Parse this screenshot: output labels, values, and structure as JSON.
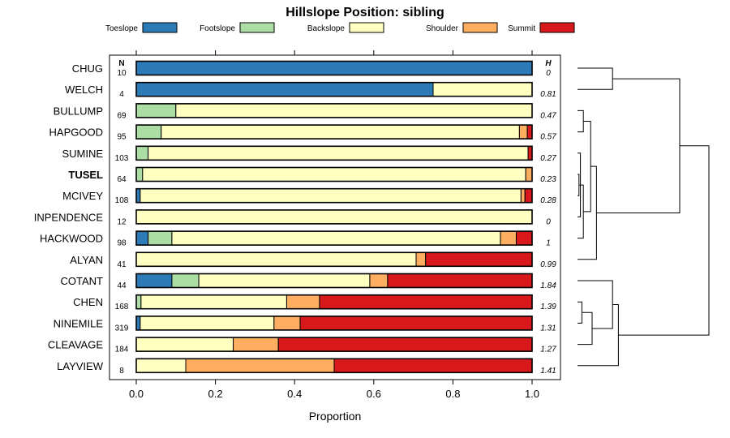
{
  "chart_data": {
    "type": "bar",
    "orientation": "horizontal",
    "stacked": true,
    "title": "Hillslope Position: sibling",
    "xlabel": "Proportion",
    "xlim": [
      0,
      1
    ],
    "xticks": [
      "0.0",
      "0.2",
      "0.4",
      "0.6",
      "0.8",
      "1.0"
    ],
    "n_header": "N",
    "h_header": "H",
    "legend_position": "top",
    "highlighted_category": "TUSEL",
    "series": [
      {
        "name": "Toeslope",
        "color": "#2c7bb6"
      },
      {
        "name": "Footslope",
        "color": "#abdda4"
      },
      {
        "name": "Backslope",
        "color": "#ffffbf"
      },
      {
        "name": "Shoulder",
        "color": "#fdae61"
      },
      {
        "name": "Summit",
        "color": "#d7191c"
      }
    ],
    "rows": [
      {
        "name": "CHUG",
        "n": "10",
        "h": "0",
        "values": [
          1.0,
          0,
          0,
          0,
          0
        ]
      },
      {
        "name": "WELCH",
        "n": "4",
        "h": "0.81",
        "values": [
          0.75,
          0,
          0.25,
          0,
          0
        ]
      },
      {
        "name": "BULLUMP",
        "n": "69",
        "h": "0.47",
        "values": [
          0,
          0.1,
          0.9,
          0,
          0
        ]
      },
      {
        "name": "HAPGOOD",
        "n": "95",
        "h": "0.57",
        "values": [
          0,
          0.063,
          0.905,
          0.02,
          0.012
        ]
      },
      {
        "name": "SUMINE",
        "n": "103",
        "h": "0.27",
        "values": [
          0,
          0.03,
          0.96,
          0,
          0.01
        ]
      },
      {
        "name": "TUSEL",
        "n": "64",
        "h": "0.23",
        "values": [
          0,
          0.016,
          0.968,
          0.016,
          0
        ]
      },
      {
        "name": "MCIVEY",
        "n": "108",
        "h": "0.28",
        "values": [
          0.01,
          0,
          0.962,
          0.01,
          0.018
        ]
      },
      {
        "name": "INPENDENCE",
        "n": "12",
        "h": "0",
        "values": [
          0,
          0,
          1.0,
          0,
          0
        ]
      },
      {
        "name": "HACKWOOD",
        "n": "98",
        "h": "1",
        "values": [
          0.03,
          0.06,
          0.83,
          0.04,
          0.04
        ]
      },
      {
        "name": "ALYAN",
        "n": "41",
        "h": "0.99",
        "values": [
          0,
          0,
          0.707,
          0.024,
          0.269
        ]
      },
      {
        "name": "COTANT",
        "n": "44",
        "h": "1.84",
        "values": [
          0.09,
          0.068,
          0.432,
          0.045,
          0.365
        ]
      },
      {
        "name": "CHEN",
        "n": "168",
        "h": "1.39",
        "values": [
          0,
          0.012,
          0.368,
          0.083,
          0.537
        ]
      },
      {
        "name": "NINEMILE",
        "n": "319",
        "h": "1.31",
        "values": [
          0.01,
          0,
          0.338,
          0.066,
          0.586
        ]
      },
      {
        "name": "CLEAVAGE",
        "n": "184",
        "h": "1.27",
        "values": [
          0,
          0,
          0.245,
          0.114,
          0.641
        ]
      },
      {
        "name": "LAYVIEW",
        "n": "8",
        "h": "1.41",
        "values": [
          0,
          0,
          0.125,
          0.375,
          0.5
        ]
      }
    ],
    "dendrogram": {
      "leaf_order": [
        "CHUG",
        "WELCH",
        "BULLUMP",
        "HAPGOOD",
        "SUMINE",
        "TUSEL",
        "MCIVEY",
        "INPENDENCE",
        "HACKWOOD",
        "ALYAN",
        "COTANT",
        "CHEN",
        "NINEMILE",
        "CLEAVAGE",
        "LAYVIEW"
      ],
      "merges": [
        {
          "a": 0,
          "b": 1,
          "h": 0.24
        },
        {
          "a": 2,
          "b": 3,
          "h": 0.04
        },
        {
          "a": 5,
          "b": 6,
          "h": 0.01
        },
        {
          "a": 4,
          "b": 7,
          "h": 0.02
        },
        {
          "a": "m3",
          "b": "m2",
          "h": 0.03
        },
        {
          "a": "m4",
          "b": 8,
          "h": 0.04
        },
        {
          "a": "m1",
          "b": "m5",
          "h": 0.09
        },
        {
          "a": "m6",
          "b": 9,
          "h": 0.13
        },
        {
          "a": 12,
          "b": 11,
          "h": 0.03
        },
        {
          "a": 13,
          "b": "m8",
          "h": 0.1
        },
        {
          "a": "m9",
          "b": 10,
          "h": 0.24
        },
        {
          "a": "m10",
          "b": 14,
          "h": 0.28
        },
        {
          "a": "m0",
          "b": "m7",
          "h": 0.7
        },
        {
          "a": "m12",
          "b": "m11",
          "h": 0.9
        }
      ]
    }
  }
}
